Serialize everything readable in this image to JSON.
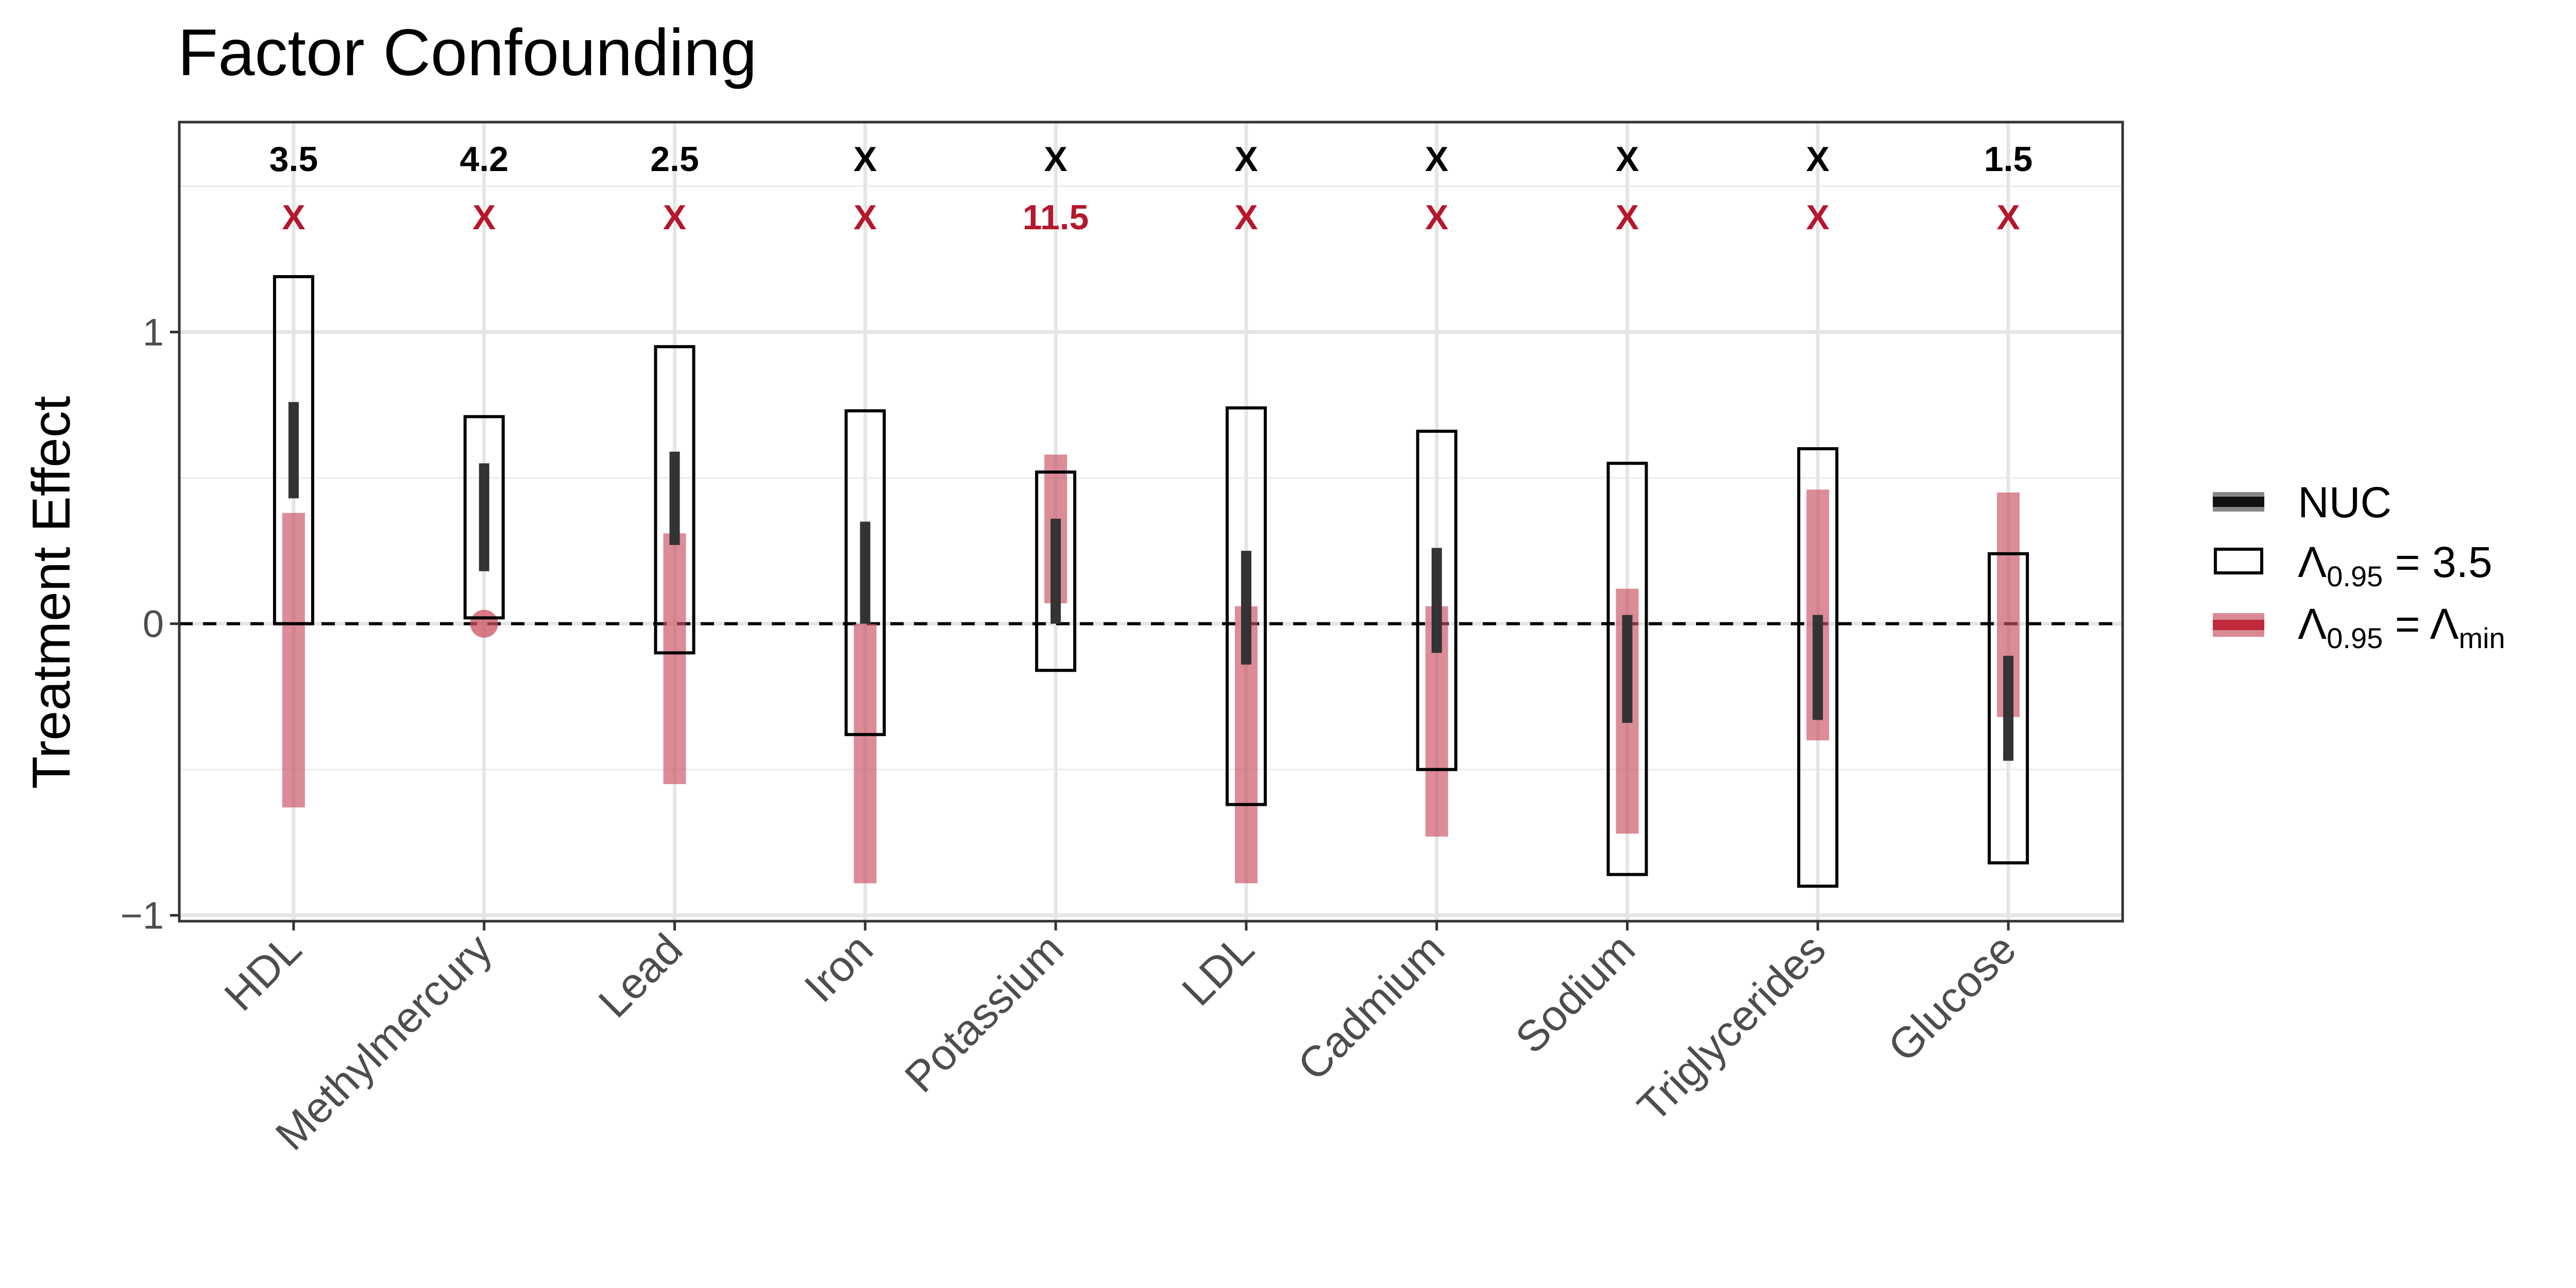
{
  "chart_data": {
    "type": "interval",
    "title": "Factor Confounding",
    "ylabel": "Treatment Effect",
    "xlabel": "",
    "ylim": [
      -1.02,
      1.72
    ],
    "yticks": [
      -1,
      0,
      1
    ],
    "ytick_labels": [
      "−1",
      "0",
      "1"
    ],
    "categories": [
      "HDL",
      "Methylmercury",
      "Lead",
      "Iron",
      "Potassium",
      "LDL",
      "Cadmium",
      "Sodium",
      "Triglycerides",
      "Glucose"
    ],
    "series": [
      {
        "name": "NUC",
        "color": "#333333",
        "lower": [
          0.43,
          0.18,
          0.27,
          0.0,
          0.0,
          -0.14,
          -0.1,
          -0.34,
          -0.33,
          -0.47
        ],
        "upper": [
          0.76,
          0.55,
          0.59,
          0.35,
          0.36,
          0.25,
          0.26,
          0.03,
          0.03,
          -0.11
        ]
      },
      {
        "name": "Λ0.95 = 3.5",
        "color": "#000000",
        "lower": [
          0.0,
          0.02,
          -0.1,
          -0.38,
          -0.16,
          -0.62,
          -0.5,
          -0.86,
          -0.9,
          -0.82
        ],
        "upper": [
          1.19,
          0.71,
          0.95,
          0.73,
          0.52,
          0.74,
          0.66,
          0.55,
          0.6,
          0.24
        ]
      },
      {
        "name": "Λ0.95 = Λmin",
        "color": "#c94f5f",
        "lower": [
          -0.63,
          0.0,
          -0.55,
          -0.89,
          0.07,
          -0.89,
          -0.73,
          -0.72,
          -0.4,
          -0.32
        ],
        "upper": [
          0.38,
          0.0,
          0.31,
          0.0,
          0.58,
          0.06,
          0.06,
          0.12,
          0.46,
          0.45
        ]
      }
    ],
    "reference_line": 0,
    "top_labels_row1": [
      "3.5",
      "4.2",
      "2.5",
      "X",
      "X",
      "X",
      "X",
      "X",
      "X",
      "1.5"
    ],
    "top_labels_row2": [
      "X",
      "X",
      "X",
      "X",
      "11.5",
      "X",
      "X",
      "X",
      "X",
      "X"
    ],
    "row1_color": "#000000",
    "row2_color": "#b5172d",
    "grid": true,
    "legend_position": "right",
    "legend": {
      "nuc": "NUC",
      "lambda_sym": "Λ",
      "sub": "0.95",
      "eq_35": " = 3.5",
      "eq": " = ",
      "min_sub": "min"
    }
  }
}
